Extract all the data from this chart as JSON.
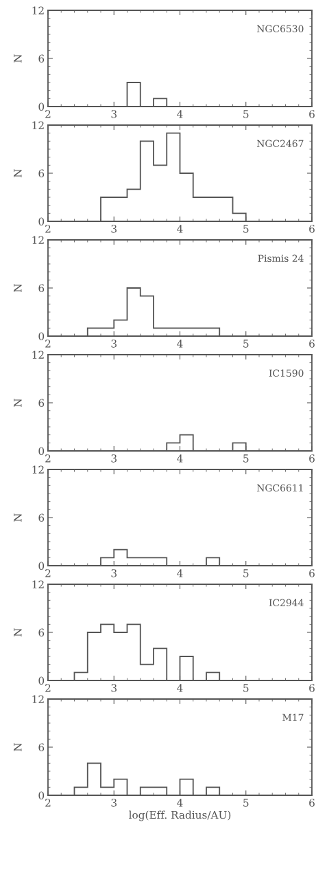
{
  "chart_data": [
    {
      "type": "histogram",
      "annotations": [
        "NGC6530"
      ],
      "ylabel": "N",
      "color": "#555555",
      "bins": [
        2.0,
        2.2,
        2.4,
        2.6,
        2.8,
        3.0,
        3.2,
        3.4,
        3.6,
        3.8,
        4.0,
        4.2,
        4.4,
        4.6,
        4.8,
        5.0,
        5.2,
        5.4,
        5.6,
        5.8,
        6.0
      ],
      "values": [
        0,
        0,
        0,
        0,
        0,
        0,
        3,
        0,
        1,
        0,
        0,
        0,
        0,
        0,
        0,
        0,
        0,
        0,
        0,
        0
      ],
      "xlim": [
        2,
        6
      ],
      "xticks": [
        2,
        3,
        4,
        5,
        6
      ],
      "ylim": [
        0,
        12
      ],
      "yticks": [
        0,
        6,
        12
      ]
    },
    {
      "type": "histogram",
      "annotations": [
        "NGC2467"
      ],
      "ylabel": "N",
      "color": "#555555",
      "bins": [
        2.0,
        2.2,
        2.4,
        2.6,
        2.8,
        3.0,
        3.2,
        3.4,
        3.6,
        3.8,
        4.0,
        4.2,
        4.4,
        4.6,
        4.8,
        5.0,
        5.2,
        5.4,
        5.6,
        5.8,
        6.0
      ],
      "values": [
        0,
        0,
        0,
        0,
        3,
        3,
        4,
        10,
        7,
        11,
        6,
        3,
        3,
        3,
        1,
        0,
        0,
        0,
        0,
        0
      ],
      "xlim": [
        2,
        6
      ],
      "xticks": [
        2,
        3,
        4,
        5,
        6
      ],
      "ylim": [
        0,
        12
      ],
      "yticks": [
        0,
        6,
        12
      ]
    },
    {
      "type": "histogram",
      "annotations": [
        "Pismis 24"
      ],
      "ylabel": "N",
      "color": "#555555",
      "bins": [
        2.0,
        2.2,
        2.4,
        2.6,
        2.8,
        3.0,
        3.2,
        3.4,
        3.6,
        3.8,
        4.0,
        4.2,
        4.4,
        4.6,
        4.8,
        5.0,
        5.2,
        5.4,
        5.6,
        5.8,
        6.0
      ],
      "values": [
        0,
        0,
        0,
        1,
        1,
        2,
        6,
        5,
        1,
        1,
        1,
        1,
        1,
        0,
        0,
        0,
        0,
        0,
        0,
        0
      ],
      "xlim": [
        2,
        6
      ],
      "xticks": [
        2,
        3,
        4,
        5,
        6
      ],
      "ylim": [
        0,
        12
      ],
      "yticks": [
        0,
        6,
        12
      ]
    },
    {
      "type": "histogram",
      "annotations": [
        "IC1590"
      ],
      "ylabel": "N",
      "color": "#555555",
      "bins": [
        2.0,
        2.2,
        2.4,
        2.6,
        2.8,
        3.0,
        3.2,
        3.4,
        3.6,
        3.8,
        4.0,
        4.2,
        4.4,
        4.6,
        4.8,
        5.0,
        5.2,
        5.4,
        5.6,
        5.8,
        6.0
      ],
      "values": [
        0,
        0,
        0,
        0,
        0,
        0,
        0,
        0,
        0,
        1,
        2,
        0,
        0,
        0,
        1,
        0,
        0,
        0,
        0,
        0
      ],
      "xlim": [
        2,
        6
      ],
      "xticks": [
        2,
        3,
        4,
        5,
        6
      ],
      "ylim": [
        0,
        12
      ],
      "yticks": [
        0,
        6,
        12
      ]
    },
    {
      "type": "histogram",
      "annotations": [
        "NGC6611"
      ],
      "ylabel": "N",
      "color": "#555555",
      "bins": [
        2.0,
        2.2,
        2.4,
        2.6,
        2.8,
        3.0,
        3.2,
        3.4,
        3.6,
        3.8,
        4.0,
        4.2,
        4.4,
        4.6,
        4.8,
        5.0,
        5.2,
        5.4,
        5.6,
        5.8,
        6.0
      ],
      "values": [
        0,
        0,
        0,
        0,
        1,
        2,
        1,
        1,
        1,
        0,
        0,
        0,
        1,
        0,
        0,
        0,
        0,
        0,
        0,
        0
      ],
      "xlim": [
        2,
        6
      ],
      "xticks": [
        2,
        3,
        4,
        5,
        6
      ],
      "ylim": [
        0,
        12
      ],
      "yticks": [
        0,
        6,
        12
      ]
    },
    {
      "type": "histogram",
      "annotations": [
        "IC2944"
      ],
      "ylabel": "N",
      "color": "#555555",
      "bins": [
        2.0,
        2.2,
        2.4,
        2.6,
        2.8,
        3.0,
        3.2,
        3.4,
        3.6,
        3.8,
        4.0,
        4.2,
        4.4,
        4.6,
        4.8,
        5.0,
        5.2,
        5.4,
        5.6,
        5.8,
        6.0
      ],
      "values": [
        0,
        0,
        1,
        6,
        7,
        6,
        7,
        2,
        4,
        0,
        3,
        0,
        1,
        0,
        0,
        0,
        0,
        0,
        0,
        0
      ],
      "xlim": [
        2,
        6
      ],
      "xticks": [
        2,
        3,
        4,
        5,
        6
      ],
      "ylim": [
        0,
        12
      ],
      "yticks": [
        0,
        6,
        12
      ]
    },
    {
      "type": "histogram",
      "annotations": [
        "M17"
      ],
      "ylabel": "N",
      "xlabel": "log(Eff. Radius/AU)",
      "color": "#555555",
      "bins": [
        2.0,
        2.2,
        2.4,
        2.6,
        2.8,
        3.0,
        3.2,
        3.4,
        3.6,
        3.8,
        4.0,
        4.2,
        4.4,
        4.6,
        4.8,
        5.0,
        5.2,
        5.4,
        5.6,
        5.8,
        6.0
      ],
      "values": [
        0,
        0,
        1,
        4,
        1,
        2,
        0,
        1,
        1,
        0,
        2,
        0,
        1,
        0,
        0,
        0,
        0,
        0,
        0,
        0
      ],
      "xlim": [
        2,
        6
      ],
      "xticks": [
        2,
        3,
        4,
        5,
        6
      ],
      "ylim": [
        0,
        12
      ],
      "yticks": [
        0,
        6,
        12
      ]
    }
  ]
}
